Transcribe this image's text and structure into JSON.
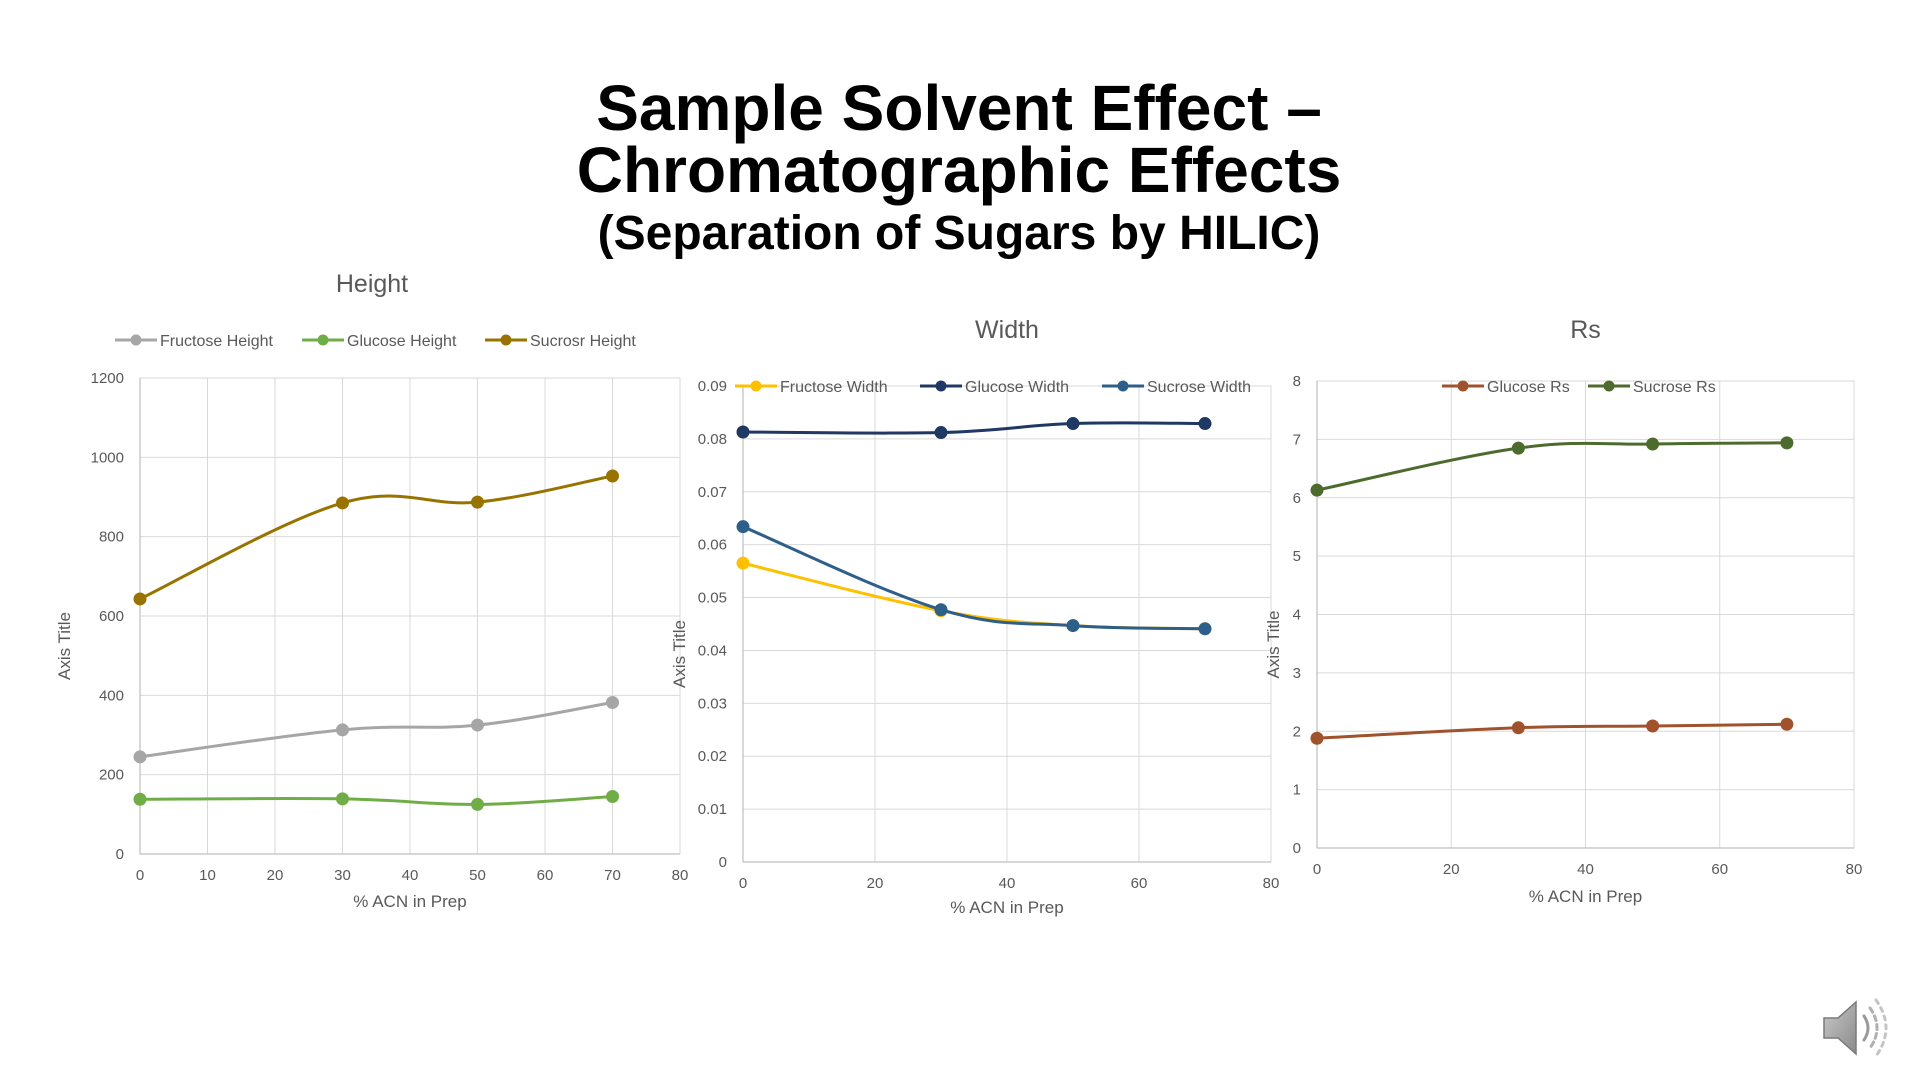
{
  "slide": {
    "title_line_1": "Sample Solvent Effect –",
    "title_line_2": "Chromatographic Effects",
    "title_line_3": "(Separation of Sugars by HILIC)",
    "speaker_icon": "speaker-audio-icon"
  },
  "colors": {
    "fructose_height": "#a6a6a6",
    "glucose_height": "#70ad47",
    "sucrose_height": "#997300",
    "fructose_width": "#ffc000",
    "glucose_width": "#1f3864",
    "sucrose_width": "#2e5f8a",
    "glucose_rs": "#a0522d",
    "sucrose_rs": "#4e6b2e",
    "grid": "#d9d9d9",
    "axis_text": "#595959"
  },
  "chart_data": [
    {
      "type": "line",
      "title": "Height",
      "xlabel": "% ACN in Prep",
      "ylabel": "Axis Title",
      "xlim": [
        0,
        80
      ],
      "ylim": [
        0,
        1200
      ],
      "xticks": [
        0,
        10,
        20,
        30,
        40,
        50,
        60,
        70,
        80
      ],
      "yticks": [
        0,
        200,
        400,
        600,
        800,
        1000,
        1200
      ],
      "grid": true,
      "legend_position": "top",
      "series": [
        {
          "name": "Fructose Height",
          "color_key": "fructose_height",
          "x": [
            0,
            30,
            50,
            70
          ],
          "y": [
            245,
            313,
            325,
            382
          ]
        },
        {
          "name": "Glucose Height",
          "color_key": "glucose_height",
          "x": [
            0,
            30,
            50,
            70
          ],
          "y": [
            138,
            139,
            125,
            145
          ]
        },
        {
          "name": "Sucrosr Height",
          "color_key": "sucrose_height",
          "x": [
            0,
            30,
            50,
            70
          ],
          "y": [
            643,
            885,
            887,
            953
          ]
        }
      ]
    },
    {
      "type": "line",
      "title": "Width",
      "xlabel": "% ACN in Prep",
      "ylabel": "Axis Title",
      "xlim": [
        0,
        80
      ],
      "ylim": [
        0,
        0.09
      ],
      "xticks": [
        0,
        20,
        40,
        60,
        80
      ],
      "yticks": [
        0,
        0.01,
        0.02,
        0.03,
        0.04,
        0.05,
        0.06,
        0.07,
        0.08,
        0.09
      ],
      "grid": true,
      "legend_position": "top",
      "series": [
        {
          "name": "Fructose Width",
          "color_key": "fructose_width",
          "x": [
            0,
            30,
            50,
            70
          ],
          "y": [
            0.0565,
            0.0475,
            0.0447,
            0.0441
          ]
        },
        {
          "name": "Glucose Width",
          "color_key": "glucose_width",
          "x": [
            0,
            30,
            50,
            70
          ],
          "y": [
            0.0813,
            0.0812,
            0.0829,
            0.0829
          ]
        },
        {
          "name": "Sucrose Width",
          "color_key": "sucrose_width",
          "x": [
            0,
            30,
            50,
            70
          ],
          "y": [
            0.0634,
            0.0477,
            0.0447,
            0.0441
          ]
        }
      ]
    },
    {
      "type": "line",
      "title": "Rs",
      "xlabel": "% ACN in Prep",
      "ylabel": "Axis Title",
      "xlim": [
        0,
        80
      ],
      "ylim": [
        0,
        8
      ],
      "xticks": [
        0,
        20,
        40,
        60,
        80
      ],
      "yticks": [
        0,
        1,
        2,
        3,
        4,
        5,
        6,
        7,
        8
      ],
      "grid": true,
      "legend_position": "top",
      "series": [
        {
          "name": "Glucose Rs",
          "color_key": "glucose_rs",
          "x": [
            0,
            30,
            50,
            70
          ],
          "y": [
            1.88,
            2.06,
            2.09,
            2.12
          ]
        },
        {
          "name": "Sucrose Rs",
          "color_key": "sucrose_rs",
          "x": [
            0,
            30,
            50,
            70
          ],
          "y": [
            6.13,
            6.85,
            6.92,
            6.94
          ]
        }
      ]
    }
  ]
}
